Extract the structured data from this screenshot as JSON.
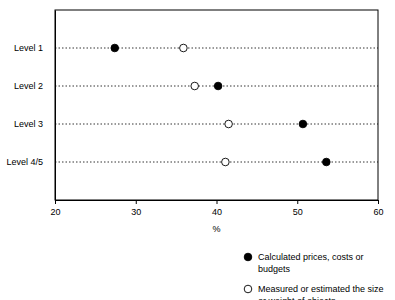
{
  "chart_data": {
    "type": "dot",
    "categories": [
      "Level 1",
      "Level 2",
      "Level 3",
      "Level 4/5"
    ],
    "series": [
      {
        "name": "Calculated prices, costs or budgets",
        "color": "#000000",
        "marker": "circle",
        "values": [
          27.4,
          40.2,
          50.7,
          53.6
        ]
      },
      {
        "name": "Measured or estimated the size or weight of objects",
        "color": "#000000",
        "marker": "circle-open",
        "values": [
          35.9,
          37.3,
          41.5,
          41.1
        ]
      }
    ],
    "x_label": "%",
    "xlim": [
      20,
      60
    ],
    "xticks": [
      20,
      30,
      40,
      50,
      60
    ],
    "grid": true,
    "legend": "bottom-right"
  }
}
